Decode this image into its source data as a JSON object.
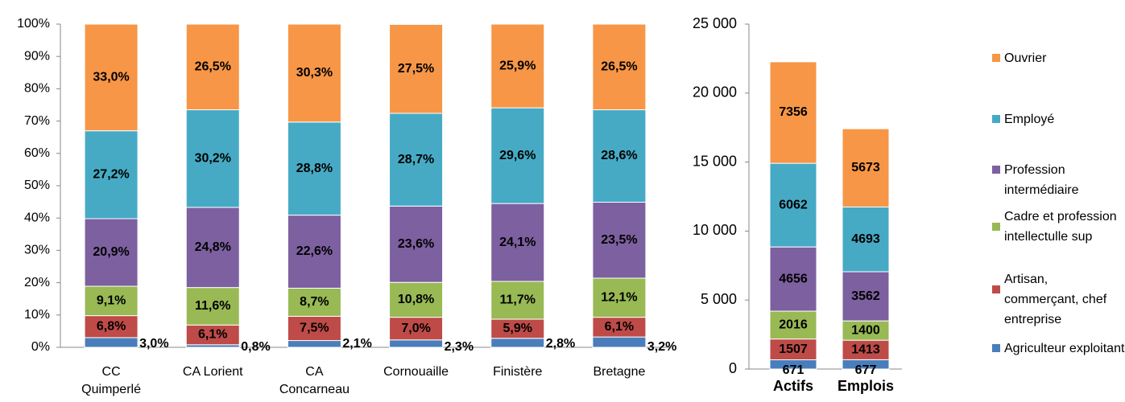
{
  "chart_data": [
    {
      "type": "stacked-bar",
      "categories": [
        "CC Quimperlé",
        "CA Lorient",
        "CA Concarneau",
        "Cornouaille",
        "Finistère",
        "Bretagne"
      ],
      "ylim": [
        0,
        100
      ],
      "yticks": [
        {
          "value": 0,
          "label": "0%"
        },
        {
          "value": 10,
          "label": "10%"
        },
        {
          "value": 20,
          "label": "20%"
        },
        {
          "value": 30,
          "label": "30%"
        },
        {
          "value": 40,
          "label": "40%"
        },
        {
          "value": 50,
          "label": "50%"
        },
        {
          "value": 60,
          "label": "60%"
        },
        {
          "value": 70,
          "label": "70%"
        },
        {
          "value": 80,
          "label": "80%"
        },
        {
          "value": 90,
          "label": "90%"
        },
        {
          "value": 100,
          "label": "100%"
        }
      ],
      "series": [
        {
          "color": "#4a7ebb",
          "values": [
            3.0,
            0.8,
            2.1,
            2.3,
            2.8,
            3.2
          ],
          "value_labels": [
            "3,0%",
            "0,8%",
            "2,1%",
            "2,3%",
            "2,8%",
            "3,2%"
          ]
        },
        {
          "color": "#be4b48",
          "values": [
            6.8,
            6.1,
            7.5,
            7.0,
            5.9,
            6.1
          ],
          "value_labels": [
            "6,8%",
            "6,1%",
            "7,5%",
            "7,0%",
            "5,9%",
            "6,1%"
          ]
        },
        {
          "color": "#98b954",
          "values": [
            9.1,
            11.6,
            8.7,
            10.8,
            11.7,
            12.1
          ],
          "value_labels": [
            "9,1%",
            "11,6%",
            "8,7%",
            "10,8%",
            "11,7%",
            "12,1%"
          ]
        },
        {
          "color": "#7d60a0",
          "values": [
            20.9,
            24.8,
            22.6,
            23.6,
            24.1,
            23.5
          ],
          "value_labels": [
            "20,9%",
            "24,8%",
            "22,6%",
            "23,6%",
            "24,1%",
            "23,5%"
          ]
        },
        {
          "color": "#46aac5",
          "values": [
            27.2,
            30.2,
            28.8,
            28.7,
            29.6,
            28.6
          ],
          "value_labels": [
            "27,2%",
            "30,2%",
            "28,8%",
            "28,7%",
            "29,6%",
            "28,6%"
          ]
        },
        {
          "color": "#f79646",
          "values": [
            33.0,
            26.5,
            30.3,
            27.5,
            25.9,
            26.5
          ],
          "value_labels": [
            "33,0%",
            "26,5%",
            "30,3%",
            "27,5%",
            "25,9%",
            "26,5%"
          ]
        }
      ]
    },
    {
      "type": "stacked-bar",
      "categories": [
        "Actifs",
        "Emplois"
      ],
      "ylim": [
        0,
        25000
      ],
      "yticks": [
        0,
        {
          "value": 5000,
          "label": "5 000"
        },
        {
          "value": 10000,
          "label": "10 000"
        },
        {
          "value": 15000,
          "label": "15 000"
        },
        {
          "value": 20000,
          "label": "20 000"
        },
        {
          "value": 25000,
          "label": "25 000"
        }
      ],
      "legend": "right",
      "series": [
        {
          "name": "Agriculteur exploitant",
          "color": "#4a7ebb",
          "values": [
            671,
            677
          ]
        },
        {
          "name": "Artisan, commerçant, chef entreprise",
          "color": "#be4b48",
          "values": [
            1507,
            1413
          ]
        },
        {
          "name": "Cadre et profession intellectulle sup",
          "color": "#98b954",
          "values": [
            2016,
            1400
          ]
        },
        {
          "name": "Profession intermédiaire",
          "color": "#7d60a0",
          "values": [
            4656,
            3562
          ]
        },
        {
          "name": "Employé",
          "color": "#46aac5",
          "values": [
            6062,
            4693
          ]
        },
        {
          "name": "Ouvrier",
          "color": "#f79646",
          "values": [
            7356,
            5673
          ]
        }
      ]
    }
  ]
}
